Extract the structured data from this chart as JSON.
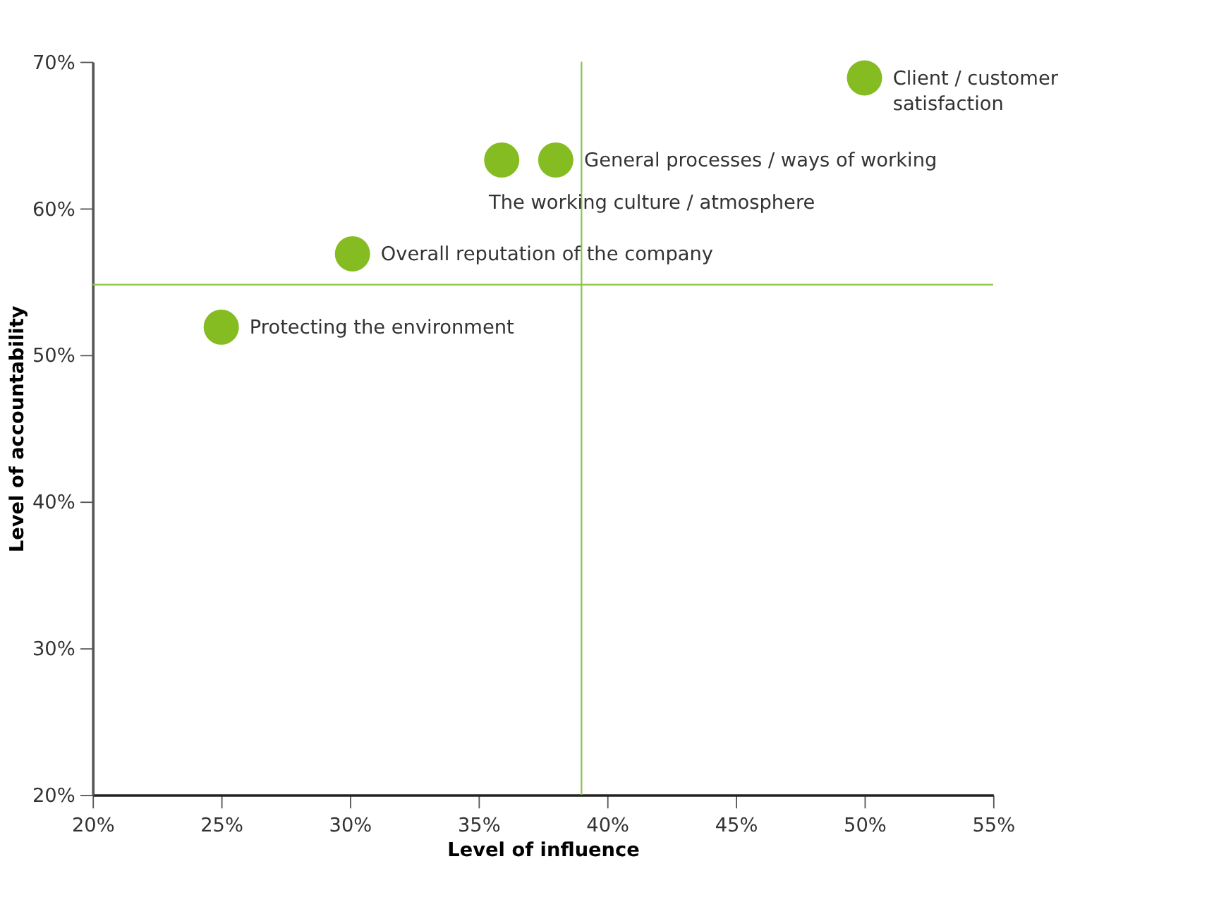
{
  "chart_data": {
    "type": "scatter",
    "xlabel": "Level of influence",
    "ylabel": "Level of accountability",
    "x": [
      50.0,
      38.0,
      35.9,
      30.1,
      25.0
    ],
    "series": [
      {
        "color": "#84bc22",
        "values": [
          68.9,
          63.3,
          63.3,
          56.9,
          51.9
        ]
      }
    ],
    "annotations": [
      {
        "text": "Client / customer satisfaction",
        "x": 50.0,
        "y": 68.9
      },
      {
        "text": "General processes / ways of working",
        "x": 38.0,
        "y": 63.3
      },
      {
        "text": "The working culture / atmosphere",
        "x": 35.9,
        "y": 63.3
      },
      {
        "text": "Overall reputation of the company",
        "x": 30.1,
        "y": 56.9
      },
      {
        "text": "Protecting the environment",
        "x": 25.0,
        "y": 51.9
      }
    ],
    "ref_lines": [
      {
        "axis": "x",
        "value": 39.0,
        "color": "#8cc63f"
      },
      {
        "axis": "y",
        "value": 54.8,
        "color": "#8cc63f"
      }
    ],
    "xlim": [
      20,
      55
    ],
    "ylim": [
      20,
      70
    ],
    "xticks": [
      {
        "value": 20,
        "label": "20%"
      },
      {
        "value": 25,
        "label": "25%"
      },
      {
        "value": 30,
        "label": "30%"
      },
      {
        "value": 35,
        "label": "35%"
      },
      {
        "value": 40,
        "label": "40%"
      },
      {
        "value": 45,
        "label": "45%"
      },
      {
        "value": 50,
        "label": "50%"
      },
      {
        "value": 55,
        "label": "55%"
      }
    ],
    "yticks": [
      {
        "value": 20,
        "label": "20%"
      },
      {
        "value": 30,
        "label": "30%"
      },
      {
        "value": 40,
        "label": "40%"
      },
      {
        "value": 50,
        "label": "50%"
      },
      {
        "value": 60,
        "label": "60%"
      },
      {
        "value": 70,
        "label": "70%"
      }
    ],
    "marker": "circle"
  }
}
